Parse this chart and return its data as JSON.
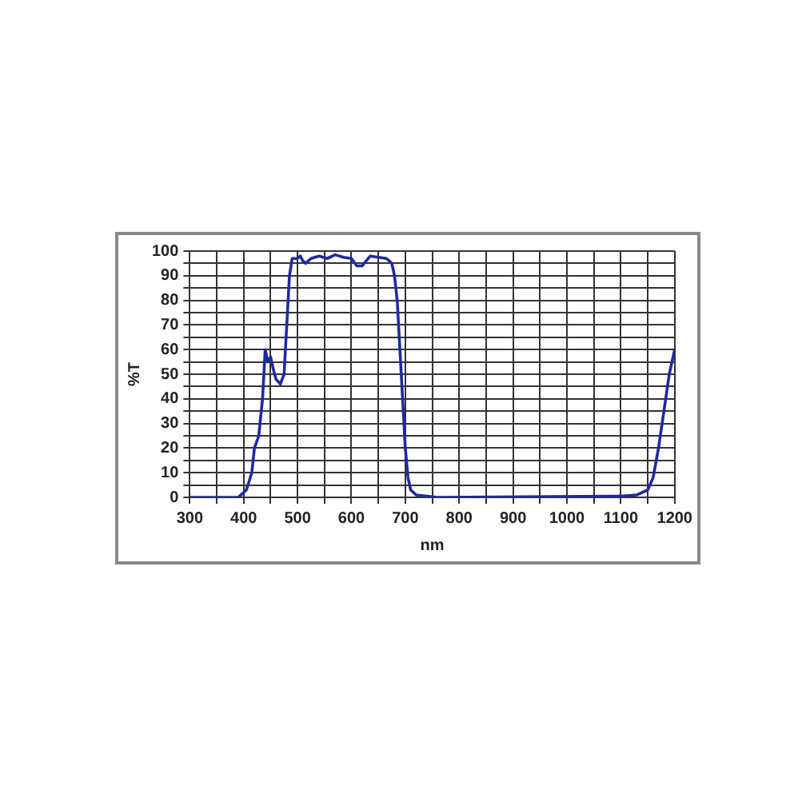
{
  "chart_data": {
    "type": "line",
    "xlabel": "nm",
    "ylabel": "%T",
    "xlim": [
      300,
      1200
    ],
    "ylim": [
      0,
      100
    ],
    "xticks": [
      300,
      {
        "value": 350,
        "label": null
      },
      400,
      {
        "value": 450,
        "label": null
      },
      500,
      {
        "value": 550,
        "label": null
      },
      600,
      {
        "value": 650,
        "label": null
      },
      700,
      {
        "value": 750,
        "label": null
      },
      800,
      {
        "value": 850,
        "label": null
      },
      900,
      {
        "value": 950,
        "label": null
      },
      1000,
      {
        "value": 1050,
        "label": null
      },
      1100,
      {
        "value": 1150,
        "label": null
      },
      1200
    ],
    "yticks": [
      0,
      {
        "value": 5,
        "label": null
      },
      10,
      {
        "value": 15,
        "label": null
      },
      20,
      {
        "value": 25,
        "label": null
      },
      30,
      {
        "value": 35,
        "label": null
      },
      40,
      {
        "value": 45,
        "label": null
      },
      50,
      {
        "value": 55,
        "label": null
      },
      60,
      {
        "value": 65,
        "label": null
      },
      70,
      {
        "value": 75,
        "label": null
      },
      80,
      {
        "value": 85,
        "label": null
      },
      90,
      {
        "value": 95,
        "label": null
      },
      100
    ],
    "grid": true,
    "legend": false,
    "marker": "none",
    "line_style": "solid",
    "series": [
      {
        "color": "#1f2a9e",
        "x": [
          300,
          390,
          395,
          405,
          415,
          420,
          428,
          435,
          440,
          445,
          450,
          455,
          460,
          468,
          475,
          480,
          485,
          490,
          500,
          505,
          510,
          515,
          525,
          540,
          555,
          570,
          585,
          600,
          610,
          620,
          635,
          650,
          665,
          675,
          680,
          685,
          690,
          695,
          700,
          705,
          710,
          720,
          740,
          760,
          1100,
          1130,
          1150,
          1160,
          1170,
          1180,
          1190,
          1200
        ],
        "values": [
          0,
          0,
          1,
          3,
          10,
          20,
          25,
          40,
          60,
          55,
          57,
          52,
          48,
          46,
          50,
          70,
          90,
          97,
          97,
          98,
          96,
          95,
          97,
          98,
          97,
          98.5,
          97.5,
          97,
          94,
          94,
          98,
          97.5,
          97,
          95,
          90,
          80,
          60,
          40,
          20,
          8,
          3,
          1,
          0.5,
          0,
          0.5,
          1,
          3,
          8,
          20,
          35,
          50,
          60
        ]
      }
    ]
  }
}
